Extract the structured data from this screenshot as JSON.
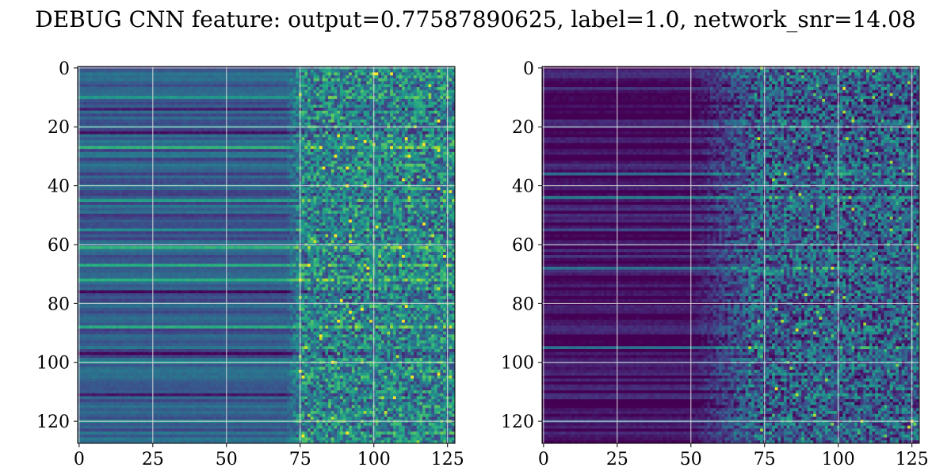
{
  "title": "DEBUG CNN feature: output=0.77587890625, label=1.0, network_snr=14.08",
  "chart_data": [
    {
      "type": "heatmap",
      "colormap": "viridis",
      "grid": true,
      "grid_color": "#d9d9d9",
      "rows": 128,
      "cols": 128,
      "xlim": [
        0,
        127
      ],
      "ylim": [
        127,
        0
      ],
      "x_ticks": [
        0,
        25,
        50,
        75,
        100,
        125
      ],
      "y_ticks": [
        0,
        20,
        40,
        60,
        80,
        100,
        120
      ],
      "x_tick_labels": [
        "0",
        "25",
        "50",
        "75",
        "100",
        "125"
      ],
      "y_tick_labels": [
        "0",
        "20",
        "40",
        "60",
        "80",
        "100",
        "120"
      ],
      "pattern": {
        "left_region_cols": [
          0,
          70
        ],
        "left_region_level": 0.3,
        "right_region_cols": [
          75,
          127
        ],
        "right_region_level": 0.45,
        "bright_rows": [
          10,
          27,
          45,
          55,
          61,
          67,
          72,
          88,
          100,
          120
        ],
        "dark_rows": [
          14,
          22,
          36,
          50,
          76,
          83,
          97,
          111
        ]
      }
    },
    {
      "type": "heatmap",
      "colormap": "viridis",
      "grid": true,
      "grid_color": "#d9d9d9",
      "rows": 128,
      "cols": 128,
      "xlim": [
        0,
        127
      ],
      "ylim": [
        127,
        0
      ],
      "x_ticks": [
        0,
        25,
        50,
        75,
        100,
        125
      ],
      "y_ticks": [
        0,
        20,
        40,
        60,
        80,
        100,
        120
      ],
      "x_tick_labels": [
        "0",
        "25",
        "50",
        "75",
        "100",
        "125"
      ],
      "y_tick_labels": [
        "0",
        "20",
        "40",
        "60",
        "80",
        "100",
        "120"
      ],
      "pattern": {
        "left_region_cols": [
          0,
          50
        ],
        "left_region_level": 0.05,
        "right_region_cols": [
          70,
          127
        ],
        "right_region_level": 0.3,
        "bright_rows": [
          36,
          44,
          55,
          68,
          95,
          120
        ],
        "dark_rows": [
          12,
          30,
          80,
          105
        ]
      }
    }
  ]
}
